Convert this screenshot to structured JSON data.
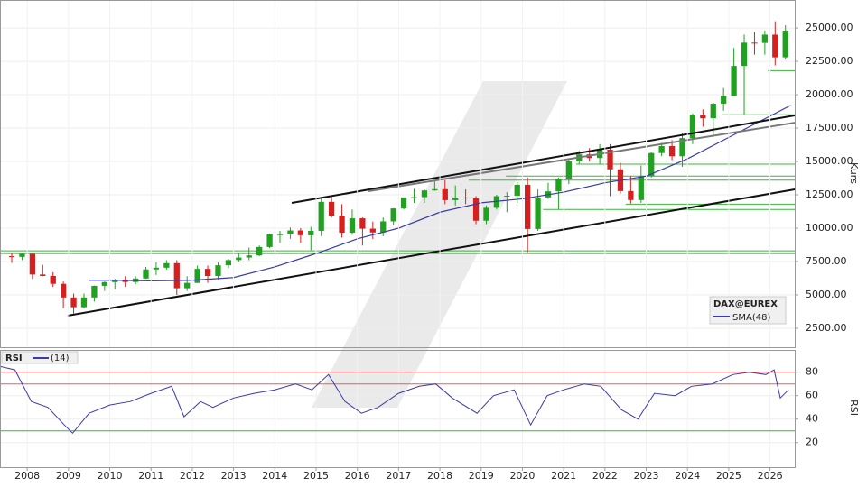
{
  "chart_data": [
    {
      "type": "candlestick",
      "name": "DAX@EUREX",
      "ylabel": "Kurs",
      "up_color": "#22a022",
      "down_color": "#d42020",
      "x": [
        2007.625,
        2007.875,
        2008.125,
        2008.375,
        2008.625,
        2008.875,
        2009.125,
        2009.375,
        2009.625,
        2009.875,
        2010.125,
        2010.375,
        2010.625,
        2010.875,
        2011.125,
        2011.375,
        2011.625,
        2011.875,
        2012.125,
        2012.375,
        2012.625,
        2012.875,
        2013.125,
        2013.375,
        2013.625,
        2013.875,
        2014.125,
        2014.375,
        2014.625,
        2014.875,
        2015.125,
        2015.375,
        2015.625,
        2015.875,
        2016.125,
        2016.375,
        2016.625,
        2016.875,
        2017.125,
        2017.375,
        2017.625,
        2017.875,
        2018.125,
        2018.375,
        2018.625,
        2018.875,
        2019.125,
        2019.375,
        2019.625,
        2019.875,
        2020.125,
        2020.375,
        2020.625,
        2020.875,
        2021.125,
        2021.375,
        2021.625,
        2021.875,
        2022.125,
        2022.375,
        2022.625,
        2022.875,
        2023.125,
        2023.375,
        2023.625,
        2023.875,
        2024.125,
        2024.375,
        2024.625,
        2024.875,
        2025.125,
        2025.375,
        2025.625,
        2025.875,
        2026.125,
        2026.375
      ],
      "open": [
        7900,
        7850,
        8070,
        6530,
        6420,
        5830,
        4810,
        4080,
        4810,
        5680,
        5960,
        6150,
        5970,
        6230,
        6910,
        7040,
        7380,
        5500,
        5900,
        6950,
        6420,
        7220,
        7610,
        7800,
        7960,
        8590,
        9550,
        9550,
        9830,
        9470,
        9800,
        11970,
        10940,
        9660,
        10740,
        9960,
        9680,
        10510,
        11480,
        12310,
        12330,
        12830,
        12920,
        12100,
        12300,
        12250,
        10560,
        11530,
        12400,
        12430,
        13250,
        9940,
        12310,
        12760,
        13720,
        15010,
        15530,
        15260,
        15880,
        14410,
        12780,
        12110,
        13920,
        15630,
        16150,
        15390,
        16750,
        18500,
        18240,
        19330,
        19910,
        22160,
        23900,
        23880,
        24500,
        22800
      ],
      "high": [
        8150,
        8100,
        8100,
        7250,
        6700,
        6000,
        5100,
        5100,
        5700,
        6000,
        6200,
        6400,
        6400,
        7100,
        7450,
        7600,
        7600,
        6400,
        7200,
        7200,
        7450,
        7700,
        8100,
        8550,
        8700,
        9600,
        9800,
        10050,
        10000,
        10100,
        12200,
        12400,
        11800,
        11400,
        10800,
        10500,
        10800,
        11500,
        12300,
        12950,
        12900,
        13550,
        13600,
        13200,
        12900,
        12400,
        11700,
        12500,
        12700,
        13450,
        13800,
        12900,
        13400,
        13800,
        15100,
        15800,
        16000,
        16300,
        16300,
        14900,
        13900,
        14700,
        15700,
        16400,
        16600,
        17100,
        18600,
        18900,
        19400,
        20500,
        23500,
        24500,
        24700,
        24800,
        25500,
        25200
      ],
      "low": [
        7400,
        7600,
        6200,
        6400,
        5600,
        4000,
        3600,
        4000,
        4500,
        5300,
        5400,
        5600,
        5800,
        6200,
        6500,
        6900,
        5000,
        5300,
        5900,
        5900,
        6100,
        7000,
        7500,
        7600,
        7900,
        8500,
        8900,
        9200,
        8900,
        8350,
        9400,
        10800,
        9300,
        9500,
        8700,
        9200,
        9400,
        10200,
        11400,
        11900,
        11900,
        12800,
        11800,
        11700,
        11800,
        10300,
        10300,
        11400,
        11200,
        11900,
        8200,
        9800,
        12200,
        11400,
        13300,
        14800,
        15000,
        14800,
        12400,
        12600,
        11850,
        11900,
        13800,
        15400,
        15100,
        14600,
        16300,
        17600,
        17000,
        18800,
        19900,
        18500,
        23000,
        23000,
        22200,
        22700
      ],
      "close": [
        7850,
        8070,
        6530,
        6420,
        5830,
        4810,
        4080,
        4810,
        5680,
        5960,
        6150,
        5970,
        6230,
        6910,
        7040,
        7380,
        5500,
        5900,
        6950,
        6420,
        7220,
        7610,
        7800,
        7960,
        8590,
        9550,
        9550,
        9830,
        9470,
        9800,
        11970,
        10940,
        9660,
        10740,
        9960,
        9680,
        10510,
        11480,
        12310,
        12330,
        12830,
        12920,
        12100,
        12300,
        12250,
        10560,
        11530,
        12400,
        12430,
        13250,
        9940,
        12310,
        12760,
        13720,
        15010,
        15530,
        15260,
        15880,
        14410,
        12780,
        12110,
        13920,
        15630,
        16150,
        15390,
        16750,
        18500,
        18240,
        19330,
        19910,
        22160,
        23900,
        23880,
        24500,
        22800,
        24800
      ],
      "sma": {
        "name": "SMA(48)",
        "color": "#3a3aa8",
        "x": [
          2009.5,
          2010,
          2011,
          2012,
          2013,
          2014,
          2015,
          2016,
          2017,
          2018,
          2019,
          2020,
          2021,
          2022,
          2023,
          2024,
          2025,
          2026,
          2026.5
        ],
        "values": [
          6100,
          6100,
          6050,
          6100,
          6300,
          7100,
          8100,
          9200,
          10000,
          11200,
          11900,
          12200,
          12700,
          13400,
          13900,
          15200,
          16800,
          18400,
          19200
        ]
      },
      "lines": [
        {
          "color": "#111111",
          "x": [
            2008.98,
            2026.6
          ],
          "y": [
            3446,
            12905
          ]
        },
        {
          "color": "#111111",
          "x": [
            2014.41,
            2026.6
          ],
          "y": [
            11892,
            18446
          ]
        },
        {
          "color": "#777777",
          "x": [
            2016.27,
            2026.6
          ],
          "y": [
            12770,
            17905
          ]
        }
      ],
      "levels": [
        {
          "y": 8300,
          "x_from": 2007.34
        },
        {
          "y": 8100,
          "x_from": 2007.34
        },
        {
          "y": 11400,
          "x_from": 2020.5
        },
        {
          "y": 11800,
          "x_from": 2022.5
        },
        {
          "y": 13600,
          "x_from": 2018.7
        },
        {
          "y": 13900,
          "x_from": 2019.6
        },
        {
          "y": 14800,
          "x_from": 2021.3
        },
        {
          "y": 18500,
          "x_from": 2024.85
        },
        {
          "y": 21800,
          "x_from": 2025.95
        }
      ],
      "level_color": "#3cb43c",
      "xlim": [
        2007.34,
        2026.6
      ],
      "ylim": [
        1080,
        27100
      ],
      "yticks": [
        {
          "value": 2500,
          "label": "2500.00"
        },
        {
          "value": 5000,
          "label": "5000.00"
        },
        {
          "value": 7500,
          "label": "7500.00"
        },
        {
          "value": 10000,
          "label": "10000.00"
        },
        {
          "value": 12500,
          "label": "12500.00"
        },
        {
          "value": 15000,
          "label": "15000.00"
        },
        {
          "value": 17500,
          "label": "17500.00"
        },
        {
          "value": 20000,
          "label": "20000.00"
        },
        {
          "value": 22500,
          "label": "22500.00"
        },
        {
          "value": 25000,
          "label": "25000.00"
        }
      ],
      "grid": true
    },
    {
      "type": "line",
      "title": "RSI",
      "ylabel": "RSI",
      "series": [
        {
          "name": "(14)",
          "color": "#3a3aa8",
          "x": [
            2007.34,
            2007.7,
            2008.1,
            2008.5,
            2008.9,
            2009.1,
            2009.5,
            2010,
            2010.5,
            2011,
            2011.5,
            2011.8,
            2012.2,
            2012.5,
            2013,
            2013.5,
            2014,
            2014.5,
            2014.9,
            2015.3,
            2015.7,
            2016.1,
            2016.5,
            2017,
            2017.5,
            2017.9,
            2018.3,
            2018.9,
            2019.3,
            2019.8,
            2020.2,
            2020.6,
            2021,
            2021.5,
            2021.9,
            2022.4,
            2022.8,
            2023.2,
            2023.7,
            2024.1,
            2024.6,
            2025.1,
            2025.5,
            2025.9,
            2026.1,
            2026.25,
            2026.45
          ],
          "values": [
            85,
            82,
            55,
            50,
            35,
            28,
            45,
            52,
            55,
            62,
            68,
            42,
            55,
            50,
            58,
            62,
            65,
            70,
            65,
            78,
            55,
            45,
            50,
            62,
            68,
            70,
            58,
            45,
            60,
            65,
            35,
            60,
            65,
            70,
            68,
            48,
            40,
            62,
            60,
            68,
            70,
            78,
            80,
            78,
            82,
            58,
            65
          ]
        }
      ],
      "levels": [
        {
          "y": 80,
          "color": "#e06060"
        },
        {
          "y": 70,
          "color": "#e06060"
        },
        {
          "y": 30,
          "color": "#3cb43c"
        }
      ],
      "xlim": [
        2007.34,
        2026.6
      ],
      "ylim": [
        -1,
        99
      ],
      "xticks": [
        2008,
        2009,
        2010,
        2011,
        2012,
        2013,
        2014,
        2015,
        2016,
        2017,
        2018,
        2019,
        2020,
        2021,
        2022,
        2023,
        2024,
        2025,
        2026
      ],
      "yticks": [
        20,
        40,
        60,
        80
      ],
      "grid": true
    }
  ]
}
